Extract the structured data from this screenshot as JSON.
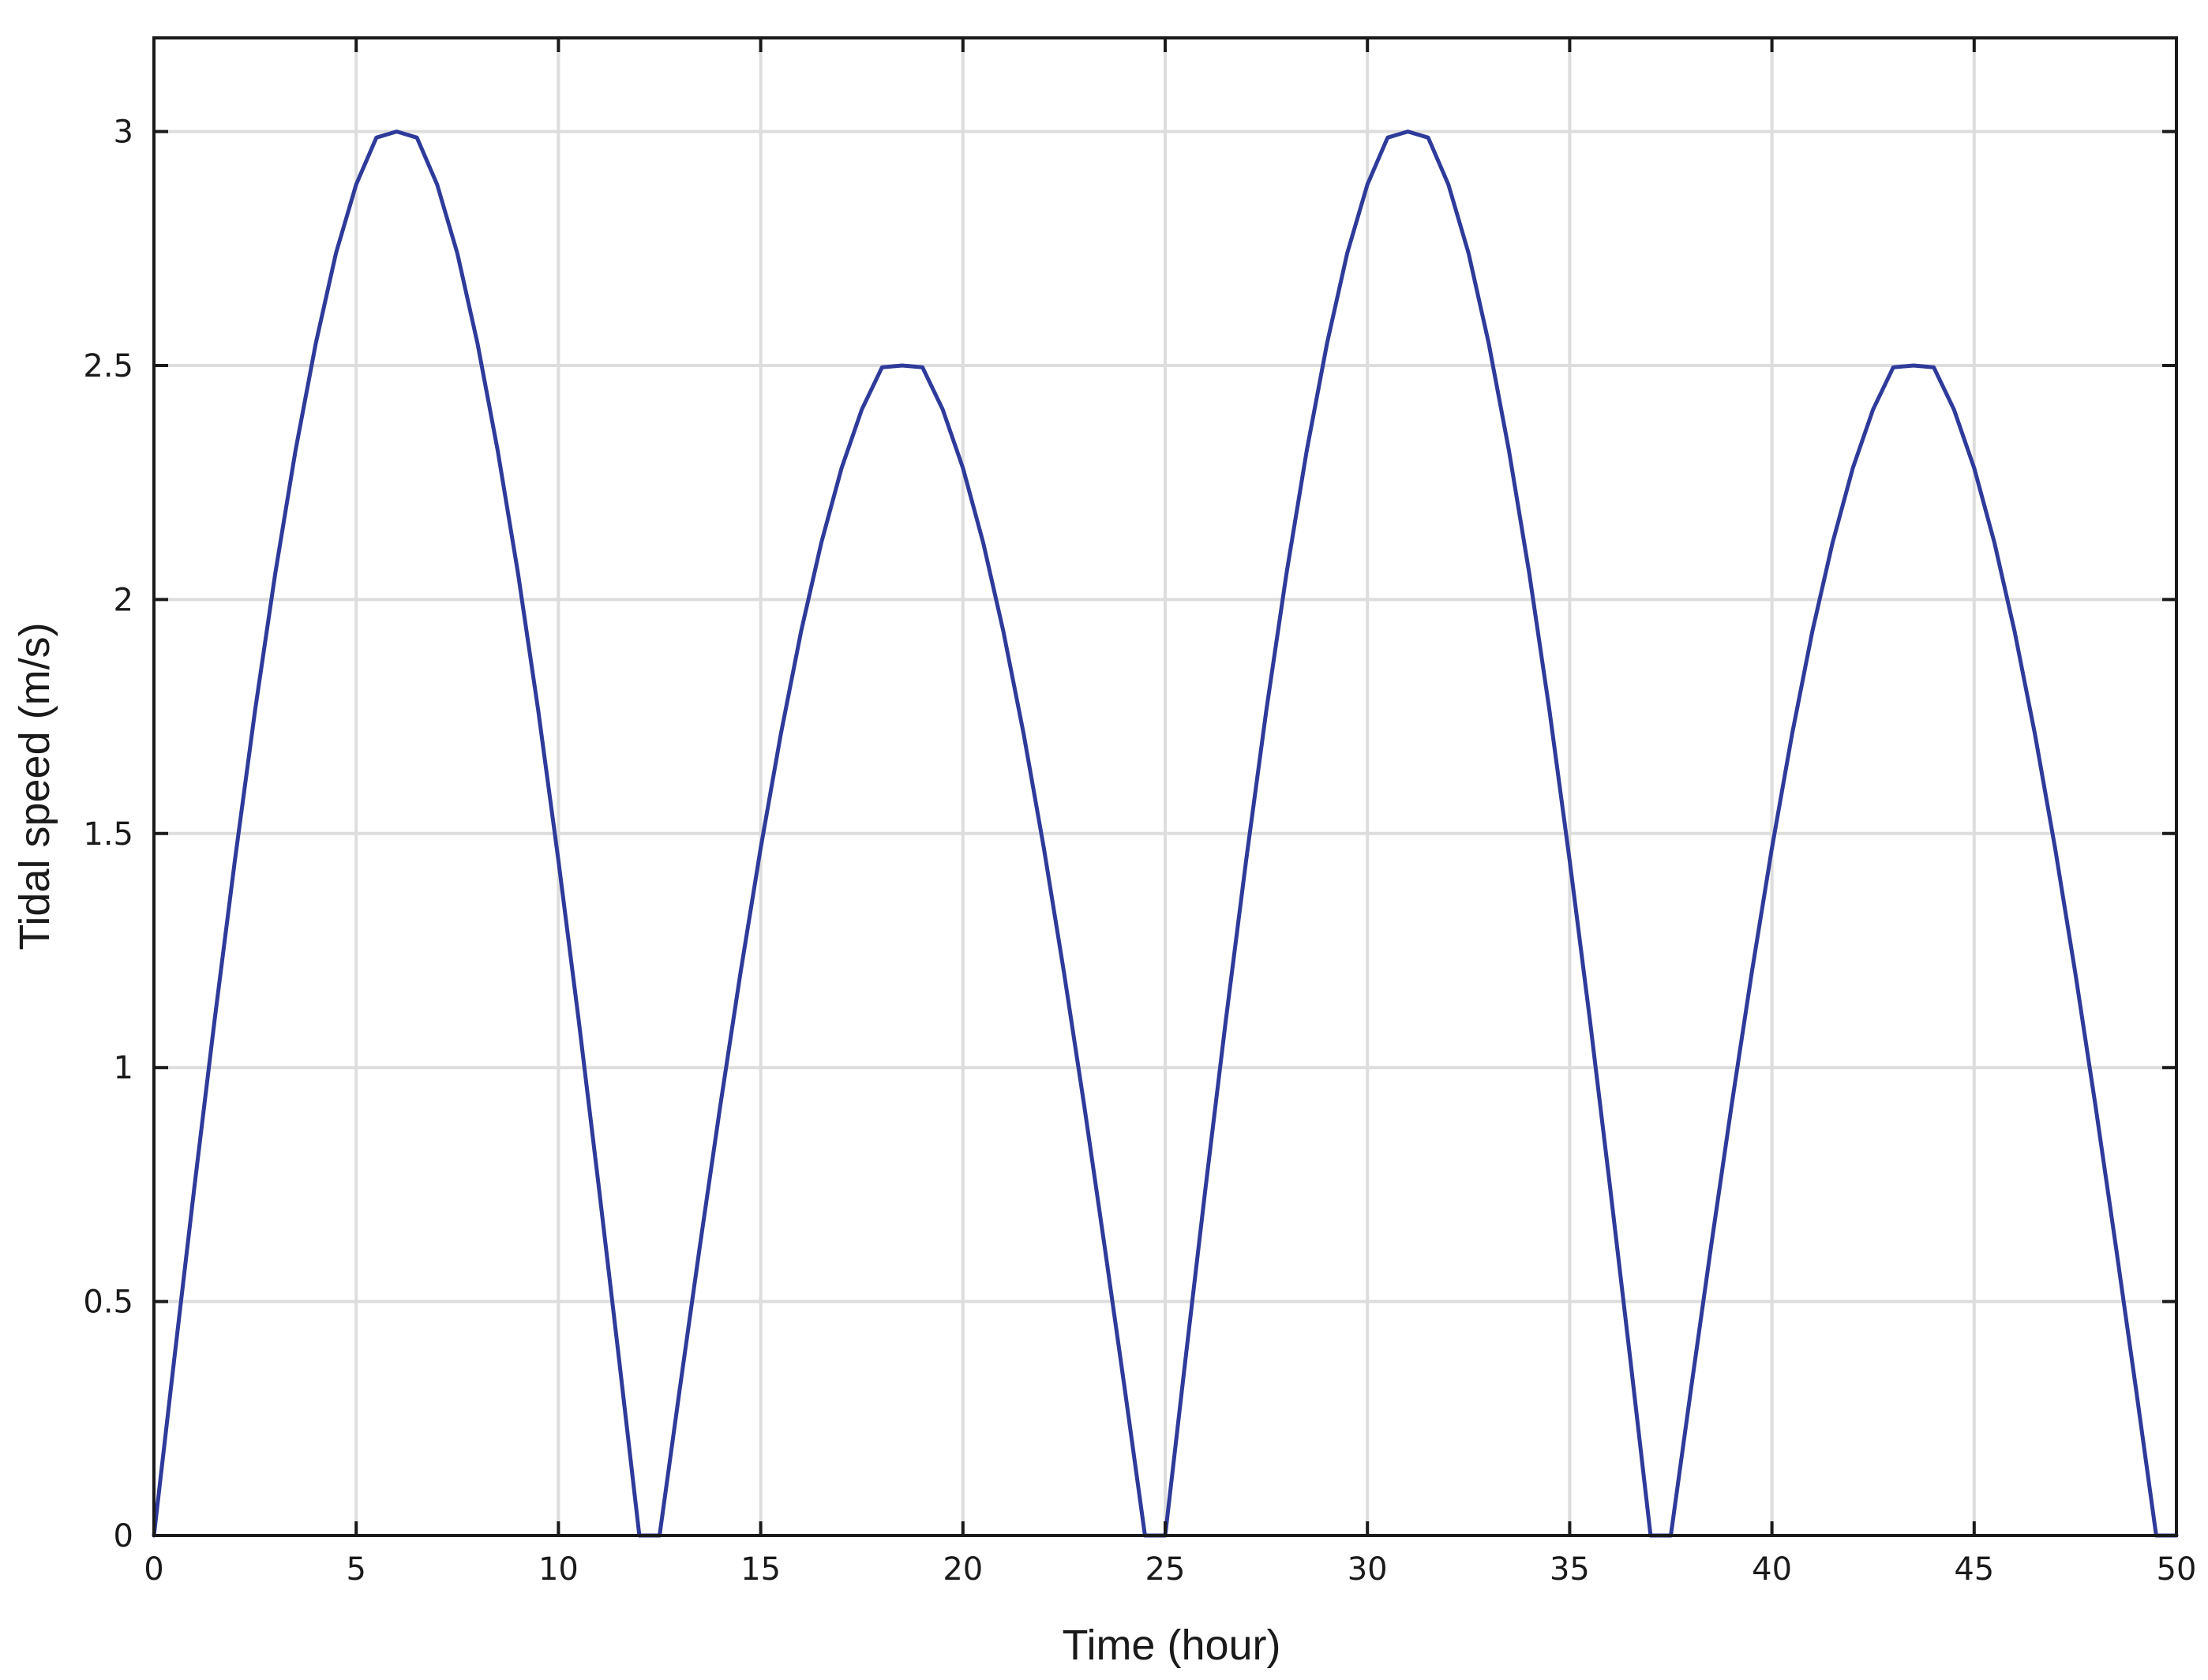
{
  "chart_data": {
    "type": "line",
    "title": "",
    "xlabel": "Time (hour)",
    "ylabel": "Tidal speed (m/s)",
    "xlim": [
      0,
      50
    ],
    "ylim": [
      0,
      3.2
    ],
    "xticks": [
      0,
      5,
      10,
      15,
      20,
      25,
      30,
      35,
      40,
      45,
      50
    ],
    "xtick_labels": [
      "0",
      "5",
      "10",
      "15",
      "20",
      "25",
      "30",
      "35",
      "40",
      "45",
      "50"
    ],
    "yticks": [
      0,
      0.5,
      1,
      1.5,
      2,
      2.5,
      3
    ],
    "ytick_labels": [
      "0",
      "0.5",
      "1",
      "1.5",
      "2",
      "2.5",
      "3"
    ],
    "grid": true,
    "legend": "none",
    "series": [
      {
        "color": "#2e3b9a",
        "x": [
          0,
          0.5,
          1,
          1.5,
          2,
          2.5,
          3,
          3.5,
          4,
          4.5,
          5,
          5.5,
          6,
          6.5,
          7,
          7.5,
          8,
          8.5,
          9,
          9.5,
          10,
          10.5,
          11,
          11.5,
          12,
          12.5,
          13,
          13.5,
          14,
          14.5,
          15,
          15.5,
          16,
          16.5,
          17,
          17.5,
          18,
          18.5,
          19,
          19.5,
          20,
          20.5,
          21,
          21.5,
          22,
          22.5,
          23,
          23.5,
          24,
          24.5,
          25,
          25.5,
          26,
          26.5,
          27,
          27.5,
          28,
          28.5,
          29,
          29.5,
          30,
          30.5,
          31,
          31.5,
          32,
          32.5,
          33,
          33.5,
          34,
          34.5,
          35,
          35.5,
          36,
          36.5,
          37,
          37.5,
          38,
          38.5,
          39,
          39.5,
          40,
          40.5,
          41,
          41.5,
          42,
          42.5,
          43,
          43.5,
          44,
          44.5,
          45,
          45.5,
          46,
          46.5,
          47,
          47.5,
          48,
          48.5,
          49,
          49.5,
          50
        ],
        "y": [
          0,
          0.375,
          0.744,
          1.102,
          1.442,
          1.763,
          2.056,
          2.318,
          2.547,
          2.74,
          2.887,
          2.987,
          3.0,
          2.987,
          2.887,
          2.74,
          2.547,
          2.318,
          2.056,
          1.763,
          1.442,
          1.102,
          0.744,
          0.375,
          0.0,
          0.0,
          0.313,
          0.62,
          0.918,
          1.202,
          1.469,
          1.713,
          1.932,
          2.122,
          2.281,
          2.406,
          2.496,
          2.5,
          2.496,
          2.406,
          2.281,
          2.122,
          1.932,
          1.713,
          1.469,
          1.202,
          0.918,
          0.62,
          0.313,
          0.0,
          0.0,
          0.375,
          0.744,
          1.102,
          1.442,
          1.763,
          2.056,
          2.318,
          2.547,
          2.74,
          2.887,
          2.987,
          3.0,
          2.987,
          2.887,
          2.74,
          2.547,
          2.318,
          2.056,
          1.763,
          1.442,
          1.102,
          0.744,
          0.375,
          0.0,
          0.0,
          0.313,
          0.62,
          0.918,
          1.202,
          1.469,
          1.713,
          1.932,
          2.122,
          2.281,
          2.406,
          2.496,
          2.5,
          2.496,
          2.406,
          2.281,
          2.122,
          1.932,
          1.713,
          1.469,
          1.202,
          0.918,
          0.62,
          0.313,
          0.0,
          0.0
        ]
      }
    ]
  }
}
